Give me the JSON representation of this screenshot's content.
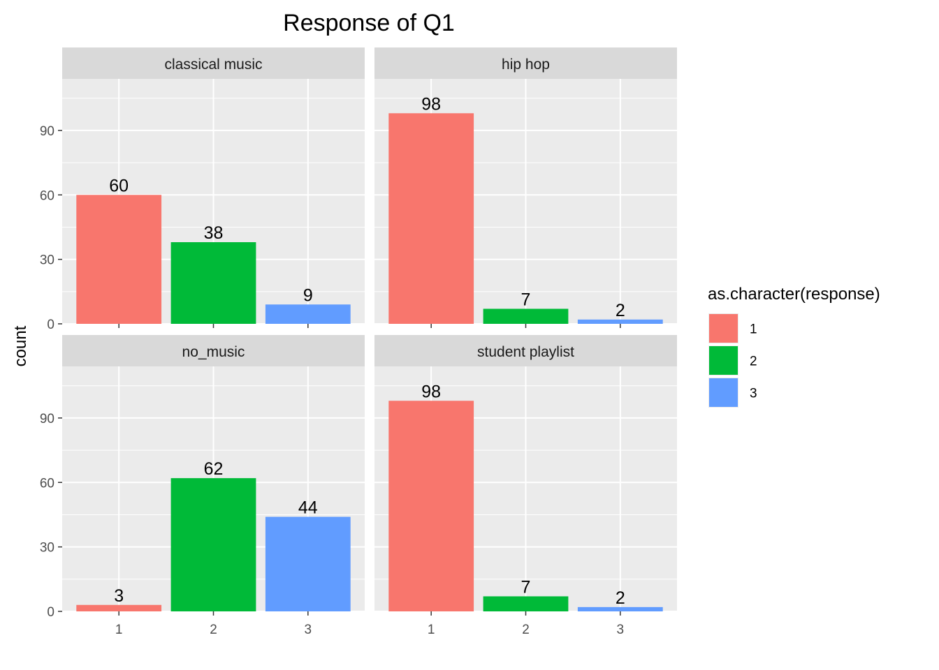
{
  "chart_data": {
    "type": "bar",
    "title": "Response of Q1",
    "ylabel": "count",
    "xlabel": "",
    "ylim": [
      0,
      114
    ],
    "yticks": [
      0,
      30,
      60,
      90
    ],
    "categories": [
      "1",
      "2",
      "3"
    ],
    "legend": {
      "title": "as.character(response)",
      "position": "right",
      "entries": [
        "1",
        "2",
        "3"
      ]
    },
    "colors": [
      "#F8766D",
      "#00BA38",
      "#619CFF"
    ],
    "panel_background": "#EBEBEB",
    "strip_background": "#D9D9D9",
    "grid": true,
    "facets": [
      {
        "label": "classical music",
        "values": [
          60,
          38,
          9
        ]
      },
      {
        "label": "hip hop",
        "values": [
          98,
          7,
          2
        ]
      },
      {
        "label": "no_music",
        "values": [
          3,
          62,
          44
        ]
      },
      {
        "label": "student playlist",
        "values": [
          98,
          7,
          2
        ]
      }
    ]
  }
}
